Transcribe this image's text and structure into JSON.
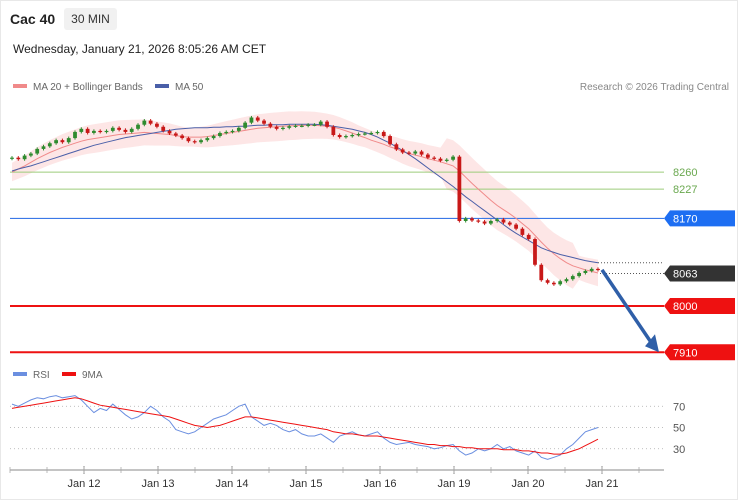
{
  "header": {
    "title": "Cac 40",
    "interval": "30 MIN",
    "datetime": "Wednesday, January 21, 2026 8:05:26 AM CET"
  },
  "legend": {
    "ma20_bb": "MA 20 + Bollinger Bands",
    "ma50": "MA 50",
    "credit": "Research © 2026 Trading Central"
  },
  "rsi_legend": {
    "rsi": "RSI",
    "ma9": "9MA"
  },
  "colors": {
    "bollinger_fill": "#fde3e3",
    "ma20": "#f08a8a",
    "ma50": "#4a5fa8",
    "bull_candle": "#2e8b2e",
    "bear_candle": "#c81818",
    "resistance_green": "#9ccc7a",
    "level_blue": "#3b78e7",
    "level_red": "#ee1111",
    "current_price": "#333333",
    "arrow": "#2f5fa8",
    "rsi": "#6b8fe0"
  },
  "chart_data": [
    {
      "type": "candlestick",
      "title": "",
      "x_ticks": [
        "Jan 12",
        "Jan 13",
        "Jan 14",
        "Jan 15",
        "Jan 16",
        "Jan 19",
        "Jan 20",
        "Jan 21"
      ],
      "ylim": [
        7895,
        8400
      ],
      "levels": [
        {
          "value": 8260,
          "label": "8260",
          "style": "green-thin"
        },
        {
          "value": 8227,
          "label": "8227",
          "style": "green-thin"
        },
        {
          "value": 8170,
          "label": "8170",
          "style": "blue"
        },
        {
          "value": 8063,
          "label": "8063",
          "style": "current"
        },
        {
          "value": 8000,
          "label": "8000",
          "style": "red"
        },
        {
          "value": 7910,
          "label": "7910",
          "style": "red"
        }
      ],
      "forecast_arrow": {
        "from": 8070,
        "to": 7910
      },
      "close": [
        8288,
        8285,
        8292,
        8296,
        8305,
        8310,
        8316,
        8322,
        8318,
        8326,
        8338,
        8344,
        8336,
        8340,
        8338,
        8340,
        8346,
        8342,
        8338,
        8344,
        8352,
        8360,
        8354,
        8348,
        8340,
        8335,
        8331,
        8326,
        8320,
        8318,
        8322,
        8326,
        8330,
        8336,
        8338,
        8340,
        8346,
        8356,
        8366,
        8360,
        8354,
        8348,
        8344,
        8346,
        8349,
        8350,
        8350,
        8352,
        8352,
        8358,
        8348,
        8332,
        8328,
        8330,
        8332,
        8334,
        8335,
        8336,
        8338,
        8330,
        8314,
        8304,
        8298,
        8296,
        8300,
        8294,
        8288,
        8286,
        8282,
        8284,
        8290,
        8165,
        8170,
        8166,
        8164,
        8160,
        8165,
        8168,
        8162,
        8158,
        8150,
        8138,
        8130,
        8080,
        8050,
        8045,
        8042,
        8048,
        8052,
        8058,
        8064,
        8068,
        8072,
        8070
      ],
      "ma20": [
        8260,
        8266,
        8272,
        8279,
        8286,
        8292,
        8298,
        8303,
        8308,
        8312,
        8316,
        8320,
        8323,
        8325,
        8327,
        8329,
        8331,
        8333,
        8334,
        8335,
        8336,
        8337,
        8336,
        8335,
        8334,
        8333,
        8331,
        8329,
        8328,
        8328,
        8328,
        8329,
        8331,
        8333,
        8335,
        8337,
        8339,
        8341,
        8343,
        8345,
        8346,
        8347,
        8348,
        8349,
        8350,
        8350,
        8351,
        8351,
        8351,
        8350,
        8349,
        8347,
        8344,
        8340,
        8336,
        8331,
        8327,
        8322,
        8318,
        8314,
        8309,
        8305,
        8300,
        8296,
        8293,
        8290,
        8286,
        8283,
        8280,
        8276,
        8272,
        8262,
        8250,
        8238,
        8227,
        8216,
        8205,
        8195,
        8187,
        8179,
        8170,
        8160,
        8150,
        8137,
        8124,
        8112,
        8101,
        8092,
        8084,
        8078,
        8074,
        8070,
        8067,
        8064
      ],
      "ma50": [
        8262,
        8266,
        8269,
        8272,
        8276,
        8280,
        8284,
        8288,
        8292,
        8296,
        8300,
        8304,
        8308,
        8312,
        8315,
        8318,
        8321,
        8324,
        8327,
        8329,
        8331,
        8333,
        8335,
        8337,
        8339,
        8341,
        8343,
        8344,
        8345,
        8346,
        8346,
        8346,
        8347,
        8347,
        8348,
        8348,
        8349,
        8349,
        8350,
        8351,
        8351,
        8352,
        8352,
        8352,
        8353,
        8353,
        8353,
        8353,
        8353,
        8352,
        8351,
        8349,
        8347,
        8345,
        8343,
        8340,
        8337,
        8333,
        8328,
        8322,
        8316,
        8309,
        8302,
        8294,
        8286,
        8277,
        8268,
        8259,
        8250,
        8241,
        8232,
        8222,
        8212,
        8203,
        8194,
        8185,
        8176,
        8167,
        8158,
        8149,
        8141,
        8134,
        8127,
        8120,
        8113,
        8108,
        8104,
        8100,
        8097,
        8094,
        8091,
        8088,
        8086,
        8084
      ],
      "rsi": [
        72,
        70,
        73,
        76,
        78,
        77,
        79,
        80,
        78,
        79,
        80,
        76,
        70,
        64,
        68,
        66,
        72,
        67,
        62,
        58,
        60,
        64,
        70,
        66,
        60,
        56,
        48,
        46,
        44,
        46,
        50,
        54,
        58,
        60,
        62,
        66,
        70,
        72,
        60,
        56,
        52,
        54,
        52,
        48,
        46,
        48,
        44,
        42,
        42,
        44,
        40,
        36,
        42,
        44,
        46,
        43,
        42,
        44,
        46,
        40,
        36,
        34,
        35,
        36,
        34,
        33,
        32,
        30,
        31,
        33,
        34,
        28,
        24,
        26,
        30,
        28,
        30,
        34,
        30,
        32,
        28,
        26,
        24,
        28,
        22,
        20,
        22,
        24,
        30,
        34,
        40,
        46,
        48,
        50
      ],
      "rsi_ma9": [
        68,
        69,
        70,
        71,
        72,
        73,
        74,
        75,
        76,
        77,
        78,
        77,
        75,
        73,
        71,
        70,
        69,
        68,
        67,
        66,
        65,
        64,
        63,
        62,
        61,
        60,
        58,
        56,
        54,
        52,
        51,
        50,
        51,
        52,
        54,
        56,
        58,
        60,
        60,
        59,
        58,
        57,
        56,
        55,
        54,
        53,
        52,
        51,
        50,
        49,
        48,
        46,
        45,
        44,
        44,
        43,
        42,
        42,
        42,
        41,
        40,
        39,
        38,
        37,
        36,
        35,
        34,
        34,
        33,
        33,
        32,
        32,
        31,
        31,
        30,
        30,
        30,
        30,
        29,
        29,
        29,
        28,
        28,
        27,
        26,
        26,
        25,
        25,
        26,
        28,
        30,
        33,
        36,
        39
      ],
      "rsi_ticks": [
        "70",
        "50",
        "30"
      ]
    }
  ]
}
